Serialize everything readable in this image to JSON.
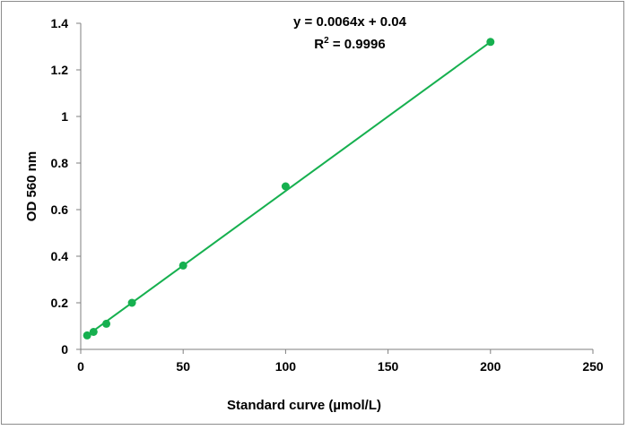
{
  "chart_data": {
    "type": "scatter",
    "xlabel": "Standard curve (µmol/L)",
    "ylabel": "OD 560 nm",
    "xlim": [
      0,
      250
    ],
    "ylim": [
      0,
      1.4
    ],
    "x_ticks": [
      "0",
      "50",
      "100",
      "150",
      "200",
      "250"
    ],
    "y_ticks": [
      "0",
      "0.2",
      "0.4",
      "0.6",
      "0.8",
      "1",
      "1.2",
      "1.4"
    ],
    "grid": false,
    "series": [
      {
        "x": [
          3.125,
          6.25,
          12.5,
          25,
          50,
          100,
          200
        ],
        "y": [
          0.06,
          0.075,
          0.11,
          0.2,
          0.36,
          0.7,
          1.32
        ],
        "color": "#16b04f"
      }
    ],
    "trendline": {
      "slope": 0.0064,
      "intercept": 0.04,
      "x_range": [
        3.125,
        200
      ],
      "color": "#16b04f"
    },
    "annotations": {
      "equation": "y = 0.0064x + 0.04",
      "r2_prefix": "R",
      "r2_sup": "2",
      "r2_value": " = 0.9996"
    }
  }
}
